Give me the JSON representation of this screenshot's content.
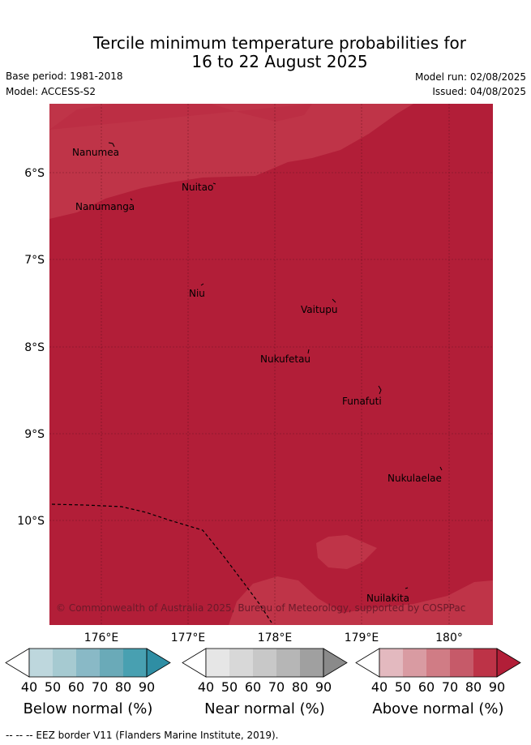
{
  "title": {
    "line1": "Tercile minimum temperature probabilities for",
    "line2": "16 to 22 August 2025"
  },
  "meta": {
    "base_period": "Base period: 1981-2018",
    "model": "Model: ACCESS-S2",
    "model_run": "Model run: 02/08/2025",
    "issued": "Issued: 04/08/2025"
  },
  "axes": {
    "lat_labels": [
      "6°S",
      "7°S",
      "8°S",
      "9°S",
      "10°S"
    ],
    "lon_labels": [
      "176°E",
      "177°E",
      "178°E",
      "179°E",
      "180°"
    ]
  },
  "places": [
    {
      "name": "Nanumea"
    },
    {
      "name": "Nuitao"
    },
    {
      "name": "Nanumanga"
    },
    {
      "name": "Niu"
    },
    {
      "name": "Vaitupu"
    },
    {
      "name": "Nukufetau"
    },
    {
      "name": "Funafuti"
    },
    {
      "name": "Nukulaelae"
    },
    {
      "name": "Nuilakita"
    }
  ],
  "copyright": "© Commonwealth of Australia 2025, Bureau of Meteorology, supported by COSPPac",
  "colorbars": [
    {
      "title": "Below normal (%)",
      "ticks": [
        "40",
        "50",
        "60",
        "70",
        "80",
        "90"
      ],
      "colors": [
        "#bed7dd",
        "#a6cad1",
        "#89b9c6",
        "#6aaab8",
        "#48a0b1",
        "#2f8ea4"
      ]
    },
    {
      "title": "Near normal (%)",
      "ticks": [
        "40",
        "50",
        "60",
        "70",
        "80",
        "90"
      ],
      "colors": [
        "#e6e6e6",
        "#d8d8d8",
        "#c8c8c8",
        "#b6b6b6",
        "#a0a0a0",
        "#8a8a8a"
      ]
    },
    {
      "title": "Above normal (%)",
      "ticks": [
        "40",
        "50",
        "60",
        "70",
        "80",
        "90"
      ],
      "colors": [
        "#e3b9bf",
        "#d99ba2",
        "#d07c85",
        "#c65a69",
        "#bd3347",
        "#b21e38"
      ]
    }
  ],
  "map_colors": {
    "dominant": "#b21e38",
    "secondary": "#bf3448"
  },
  "footer": "--  --  -- EEZ border V11 (Flanders Marine Institute, 2019)."
}
